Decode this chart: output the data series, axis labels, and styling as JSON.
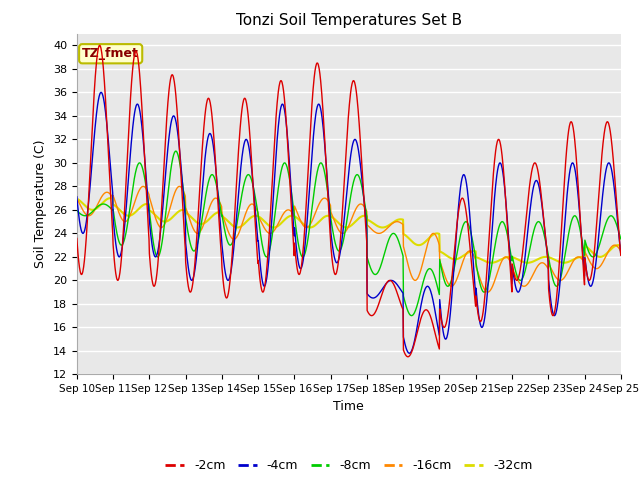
{
  "title": "Tonzi Soil Temperatures Set B",
  "xlabel": "Time",
  "ylabel": "Soil Temperature (C)",
  "ylim": [
    12,
    41
  ],
  "yticks": [
    12,
    14,
    16,
    18,
    20,
    22,
    24,
    26,
    28,
    30,
    32,
    34,
    36,
    38,
    40
  ],
  "fig_bg_color": "#ffffff",
  "plot_bg_color": "#e8e8e8",
  "grid_color": "#ffffff",
  "series_colors": {
    "-2cm": "#dd0000",
    "-4cm": "#0000cc",
    "-8cm": "#00cc00",
    "-16cm": "#ff8800",
    "-32cm": "#dddd00"
  },
  "legend_label": "TZ_fmet",
  "legend_bg": "#ffffcc",
  "legend_border": "#bbbb00",
  "x_labels": [
    "Sep 10",
    "Sep 11",
    "Sep 12",
    "Sep 13",
    "Sep 14",
    "Sep 15",
    "Sep 16",
    "Sep 17",
    "Sep 18",
    "Sep 19",
    "Sep 20",
    "Sep 21",
    "Sep 22",
    "Sep 23",
    "Sep 24",
    "Sep 25"
  ]
}
